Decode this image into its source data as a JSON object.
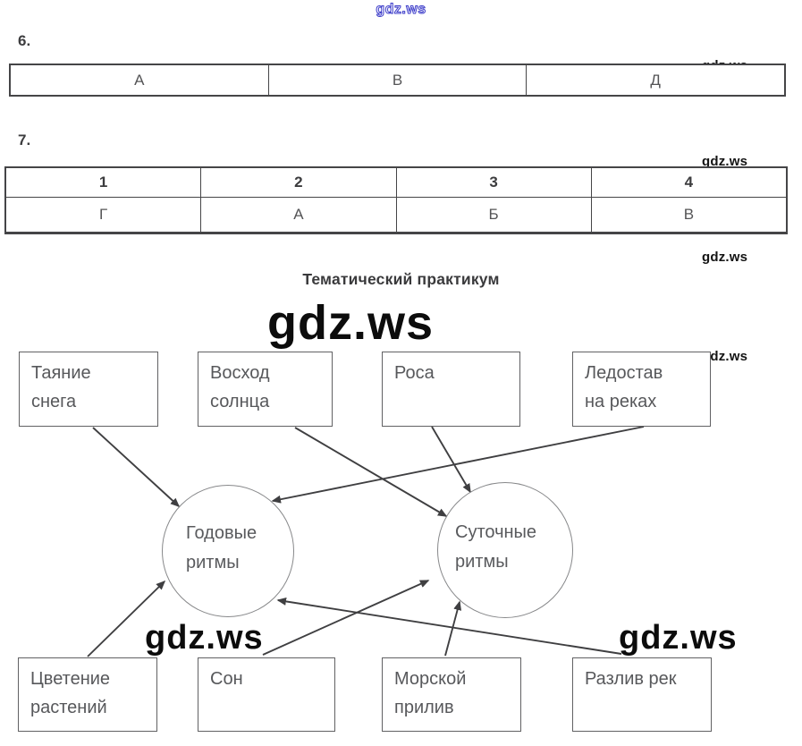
{
  "watermark": {
    "text": "gdz.ws",
    "blue_color": "#3c3cc8",
    "black_color": "#0c0c0c"
  },
  "section6": {
    "label": "6.",
    "cells": [
      "А",
      "В",
      "Д"
    ]
  },
  "section7": {
    "label": "7.",
    "headers": [
      "1",
      "2",
      "3",
      "4"
    ],
    "values": [
      "Г",
      "А",
      "Б",
      "В"
    ]
  },
  "practicum": {
    "title": "Тематический практикум"
  },
  "diagram": {
    "top_boxes": [
      {
        "label": "Таяние\nснега"
      },
      {
        "label": "Восход\nсолнца"
      },
      {
        "label": "Роса"
      },
      {
        "label": "Ледостав\nна реках"
      }
    ],
    "bottom_boxes": [
      {
        "label": "Цветение\nрастений"
      },
      {
        "label": "Сон"
      },
      {
        "label": "Морской\nприлив"
      },
      {
        "label": "Разлив рек"
      }
    ],
    "circles": [
      {
        "id": "annual",
        "label": "Годовые\nритмы"
      },
      {
        "id": "daily",
        "label": "Суточные\nритмы"
      }
    ],
    "edges": [
      {
        "from": "Таяние снега",
        "to": "Годовые ритмы"
      },
      {
        "from": "Восход солнца",
        "to": "Суточные ритмы"
      },
      {
        "from": "Роса",
        "to": "Суточные ритмы"
      },
      {
        "from": "Ледостав на реках",
        "to": "Годовые ритмы"
      },
      {
        "from": "Цветение растений",
        "to": "Годовые ритмы"
      },
      {
        "from": "Сон",
        "to": "Суточные ритмы"
      },
      {
        "from": "Морской прилив",
        "to": "Суточные ритмы"
      },
      {
        "from": "Разлив рек",
        "to": "Годовые ритмы"
      }
    ],
    "arrow_color": "#3f3f41"
  }
}
